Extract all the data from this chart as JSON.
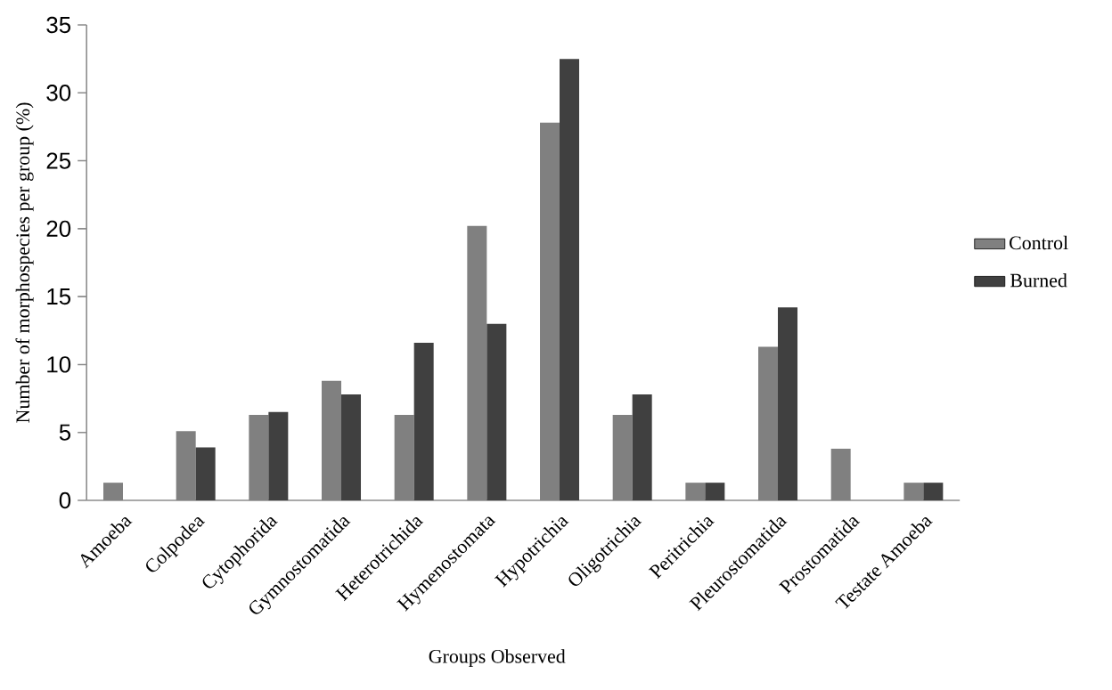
{
  "chart_data": {
    "type": "bar",
    "xlabel": "Groups Observed",
    "ylabel": "Number of morphospecies per group (%)",
    "categories": [
      "Amoeba",
      "Colpodea",
      "Cytophorida",
      "Gymnostomatida",
      "Heterotrichida",
      "Hymenostomata",
      "Hypotrichia",
      "Oligotrichia",
      "Peritrichia",
      "Pleurostomatida",
      "Prostomatida",
      "Testate Amoeba"
    ],
    "series": [
      {
        "name": "Control",
        "color": "#808080",
        "values": [
          1.3,
          5.1,
          6.3,
          8.8,
          6.3,
          20.2,
          27.8,
          6.3,
          1.3,
          11.3,
          3.8,
          1.3
        ]
      },
      {
        "name": "Burned",
        "color": "#404040",
        "values": [
          0,
          3.9,
          6.5,
          7.8,
          11.6,
          13.0,
          32.5,
          7.8,
          1.3,
          14.2,
          0,
          1.3
        ]
      }
    ],
    "ylim": [
      0,
      35
    ],
    "yticks": [
      0,
      5,
      10,
      15,
      20,
      25,
      30,
      35
    ],
    "grid": false,
    "legend": "right"
  }
}
